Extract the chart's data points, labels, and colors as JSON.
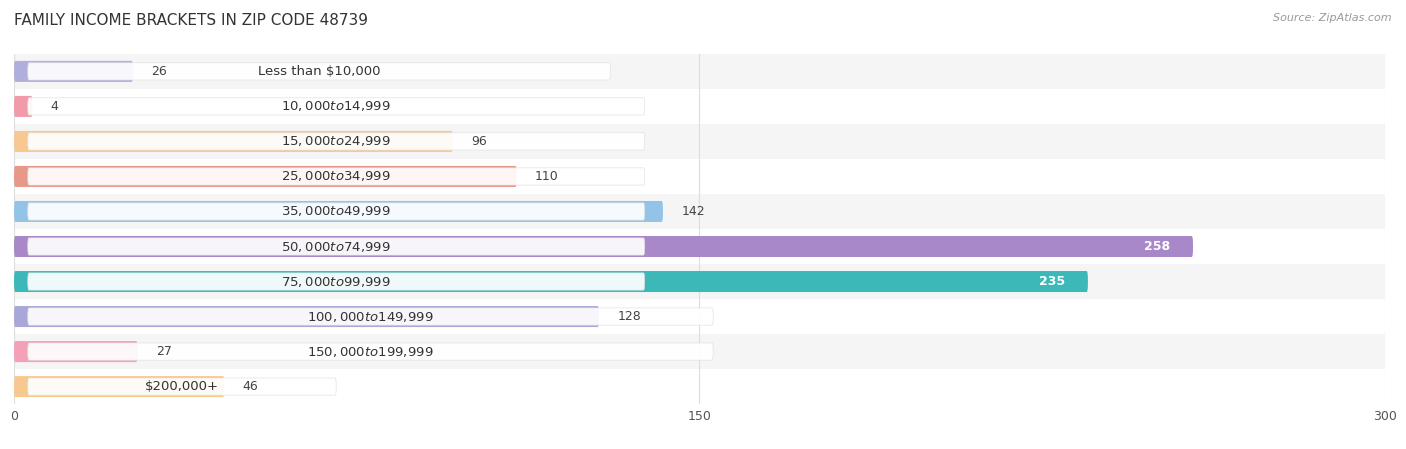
{
  "title": "FAMILY INCOME BRACKETS IN ZIP CODE 48739",
  "source": "Source: ZipAtlas.com",
  "categories": [
    "Less than $10,000",
    "$10,000 to $14,999",
    "$15,000 to $24,999",
    "$25,000 to $34,999",
    "$35,000 to $49,999",
    "$50,000 to $74,999",
    "$75,000 to $99,999",
    "$100,000 to $149,999",
    "$150,000 to $199,999",
    "$200,000+"
  ],
  "values": [
    26,
    4,
    96,
    110,
    142,
    258,
    235,
    128,
    27,
    46
  ],
  "bar_colors": [
    "#b0aedd",
    "#f09aaa",
    "#f7c890",
    "#e89888",
    "#93c4e8",
    "#a888c8",
    "#3db8b8",
    "#a8a8d8",
    "#f4a0b8",
    "#f7c890"
  ],
  "xlim": [
    0,
    300
  ],
  "xticks": [
    0,
    150,
    300
  ],
  "title_fontsize": 11,
  "label_fontsize": 9.5,
  "value_fontsize": 9,
  "background_color": "#ffffff",
  "row_bg_even": "#f5f5f5",
  "row_bg_odd": "#ffffff",
  "grid_color": "#dddddd",
  "bar_height": 0.6,
  "value_threshold": 200
}
